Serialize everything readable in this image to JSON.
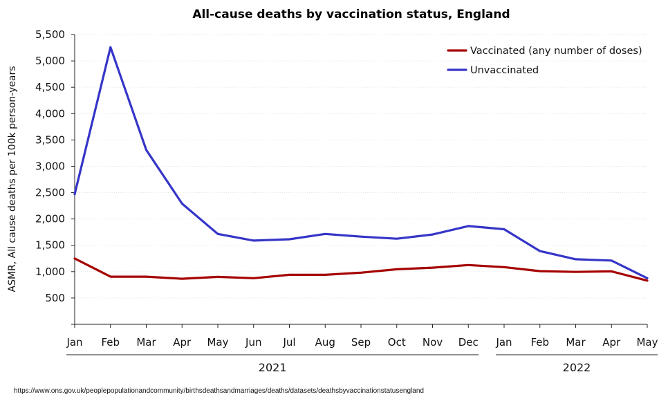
{
  "chart_data": {
    "type": "line",
    "title": "All-cause deaths by vaccination status, England",
    "ylabel": "ASMR, All cause deaths per 100k person-years",
    "xlabel": "",
    "ylim": [
      0,
      5500
    ],
    "yticks": [
      500,
      1000,
      1500,
      2000,
      2500,
      3000,
      3500,
      4000,
      4500,
      5000,
      5500
    ],
    "ytick_labels": [
      "500",
      "1,000",
      "1,500",
      "2,000",
      "2,500",
      "3,000",
      "3,500",
      "4,000",
      "4,500",
      "5,000",
      "5,500"
    ],
    "categories": [
      "Jan",
      "Feb",
      "Mar",
      "Apr",
      "May",
      "Jun",
      "Jul",
      "Aug",
      "Sep",
      "Oct",
      "Nov",
      "Dec",
      "Jan",
      "Feb",
      "Mar",
      "Apr",
      "May"
    ],
    "year_groups": [
      {
        "label": "2021",
        "start": 0,
        "end": 11
      },
      {
        "label": "2022",
        "start": 12,
        "end": 16
      }
    ],
    "grid": true,
    "legend_position": "top-right",
    "series": [
      {
        "name": "Vaccinated (any number of doses)",
        "color": "#a50000",
        "values": [
          1250,
          905,
          905,
          865,
          900,
          875,
          940,
          940,
          980,
          1045,
          1075,
          1125,
          1085,
          1010,
          995,
          1005,
          830
        ]
      },
      {
        "name": "Unvaccinated",
        "color": "#3535c8",
        "values": [
          2470,
          5260,
          3310,
          2290,
          1715,
          1590,
          1615,
          1715,
          1665,
          1625,
          1705,
          1865,
          1805,
          1390,
          1235,
          1210,
          875
        ]
      }
    ]
  },
  "source_text": "https://www.ons.gov.uk/peoplepopulationandcommunity/birthsdeathsandmarriages/deaths/datasets/deathsbyvaccinationstatusengland"
}
